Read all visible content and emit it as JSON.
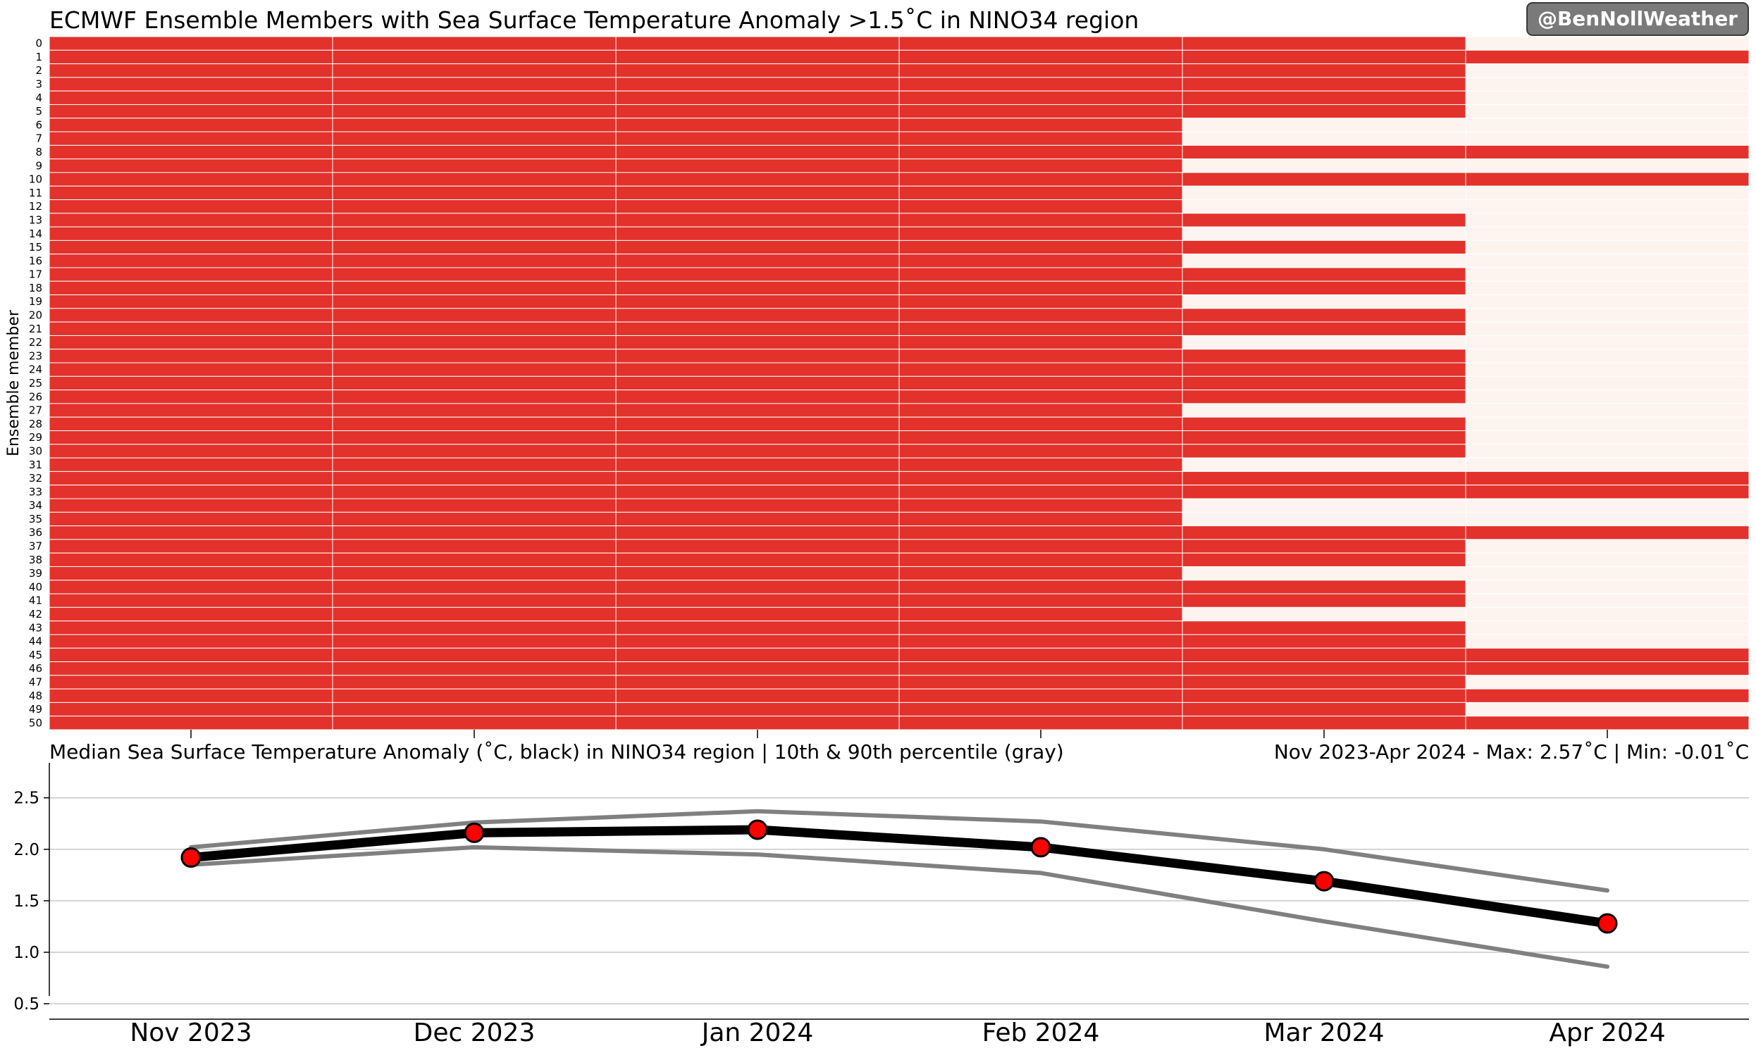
{
  "watermark": "@BenNollWeather",
  "chart_data": [
    {
      "type": "heatmap",
      "title": "ECMWF Ensemble Members with Sea Surface Temperature Anomaly >1.5˚C in NINO34 region",
      "ylabel": "Ensemble member",
      "categories": [
        "Nov 2023",
        "Dec 2023",
        "Jan 2024",
        "Feb 2024",
        "Mar 2024",
        "Apr 2024"
      ],
      "members": [
        0,
        1,
        2,
        3,
        4,
        5,
        6,
        7,
        8,
        9,
        10,
        11,
        12,
        13,
        14,
        15,
        16,
        17,
        18,
        19,
        20,
        21,
        22,
        23,
        24,
        25,
        26,
        27,
        28,
        29,
        30,
        31,
        32,
        33,
        34,
        35,
        36,
        37,
        38,
        39,
        40,
        41,
        42,
        43,
        44,
        45,
        46,
        47,
        48,
        49,
        50
      ],
      "colors": {
        "above": "#e3312b",
        "below": "#fef4ef",
        "grid": "#ffffff"
      },
      "values": [
        [
          1,
          1,
          1,
          1,
          1,
          0
        ],
        [
          1,
          1,
          1,
          1,
          1,
          1
        ],
        [
          1,
          1,
          1,
          1,
          1,
          0
        ],
        [
          1,
          1,
          1,
          1,
          1,
          0
        ],
        [
          1,
          1,
          1,
          1,
          1,
          0
        ],
        [
          1,
          1,
          1,
          1,
          1,
          0
        ],
        [
          1,
          1,
          1,
          1,
          0,
          0
        ],
        [
          1,
          1,
          1,
          1,
          0,
          0
        ],
        [
          1,
          1,
          1,
          1,
          1,
          1
        ],
        [
          1,
          1,
          1,
          1,
          0,
          0
        ],
        [
          1,
          1,
          1,
          1,
          1,
          1
        ],
        [
          1,
          1,
          1,
          1,
          0,
          0
        ],
        [
          1,
          1,
          1,
          1,
          0,
          0
        ],
        [
          1,
          1,
          1,
          1,
          1,
          0
        ],
        [
          1,
          1,
          1,
          1,
          0,
          0
        ],
        [
          1,
          1,
          1,
          1,
          1,
          0
        ],
        [
          1,
          1,
          1,
          1,
          0,
          0
        ],
        [
          1,
          1,
          1,
          1,
          1,
          0
        ],
        [
          1,
          1,
          1,
          1,
          1,
          0
        ],
        [
          1,
          1,
          1,
          1,
          0,
          0
        ],
        [
          1,
          1,
          1,
          1,
          1,
          0
        ],
        [
          1,
          1,
          1,
          1,
          1,
          0
        ],
        [
          1,
          1,
          1,
          1,
          0,
          0
        ],
        [
          1,
          1,
          1,
          1,
          1,
          0
        ],
        [
          1,
          1,
          1,
          1,
          1,
          0
        ],
        [
          1,
          1,
          1,
          1,
          1,
          0
        ],
        [
          1,
          1,
          1,
          1,
          1,
          0
        ],
        [
          1,
          1,
          1,
          1,
          0,
          0
        ],
        [
          1,
          1,
          1,
          1,
          1,
          0
        ],
        [
          1,
          1,
          1,
          1,
          1,
          0
        ],
        [
          1,
          1,
          1,
          1,
          1,
          0
        ],
        [
          1,
          1,
          1,
          1,
          0,
          0
        ],
        [
          1,
          1,
          1,
          1,
          1,
          1
        ],
        [
          1,
          1,
          1,
          1,
          1,
          1
        ],
        [
          1,
          1,
          1,
          1,
          0,
          0
        ],
        [
          1,
          1,
          1,
          1,
          0,
          0
        ],
        [
          1,
          1,
          1,
          1,
          1,
          1
        ],
        [
          1,
          1,
          1,
          1,
          1,
          0
        ],
        [
          1,
          1,
          1,
          1,
          1,
          0
        ],
        [
          1,
          1,
          1,
          1,
          0,
          0
        ],
        [
          1,
          1,
          1,
          1,
          1,
          0
        ],
        [
          1,
          1,
          1,
          1,
          1,
          0
        ],
        [
          1,
          1,
          1,
          1,
          0,
          0
        ],
        [
          1,
          1,
          1,
          1,
          1,
          0
        ],
        [
          1,
          1,
          1,
          1,
          1,
          0
        ],
        [
          1,
          1,
          1,
          1,
          1,
          1
        ],
        [
          1,
          1,
          1,
          1,
          1,
          1
        ],
        [
          1,
          1,
          1,
          1,
          1,
          0
        ],
        [
          1,
          1,
          1,
          1,
          1,
          1
        ],
        [
          1,
          1,
          1,
          1,
          1,
          0
        ],
        [
          1,
          1,
          1,
          1,
          1,
          1
        ]
      ]
    },
    {
      "type": "line",
      "title": "Median Sea Surface Temperature Anomaly (˚C, black) in NINO34 region | 10th & 90th percentile (gray)",
      "subtitle_right": "Nov 2023-Apr 2024 - Max: 2.57˚C | Min: -0.01˚C",
      "categories": [
        "Nov 2023",
        "Dec 2023",
        "Jan 2024",
        "Feb 2024",
        "Mar 2024",
        "Apr 2024"
      ],
      "ylim": [
        0.35,
        2.84
      ],
      "yticks": [
        "0.5",
        "1.0",
        "1.5",
        "2.0",
        "2.5"
      ],
      "grid": true,
      "series": [
        {
          "color": "#808080",
          "values": [
            2.02,
            2.26,
            2.37,
            2.27,
            2.0,
            1.6
          ]
        },
        {
          "color": "#808080",
          "values": [
            1.85,
            2.02,
            1.95,
            1.77,
            1.3,
            0.86
          ]
        },
        {
          "color": "#000000",
          "marker_color": "#ff0000",
          "values": [
            1.92,
            2.16,
            2.19,
            2.02,
            1.69,
            1.28
          ]
        }
      ]
    }
  ]
}
